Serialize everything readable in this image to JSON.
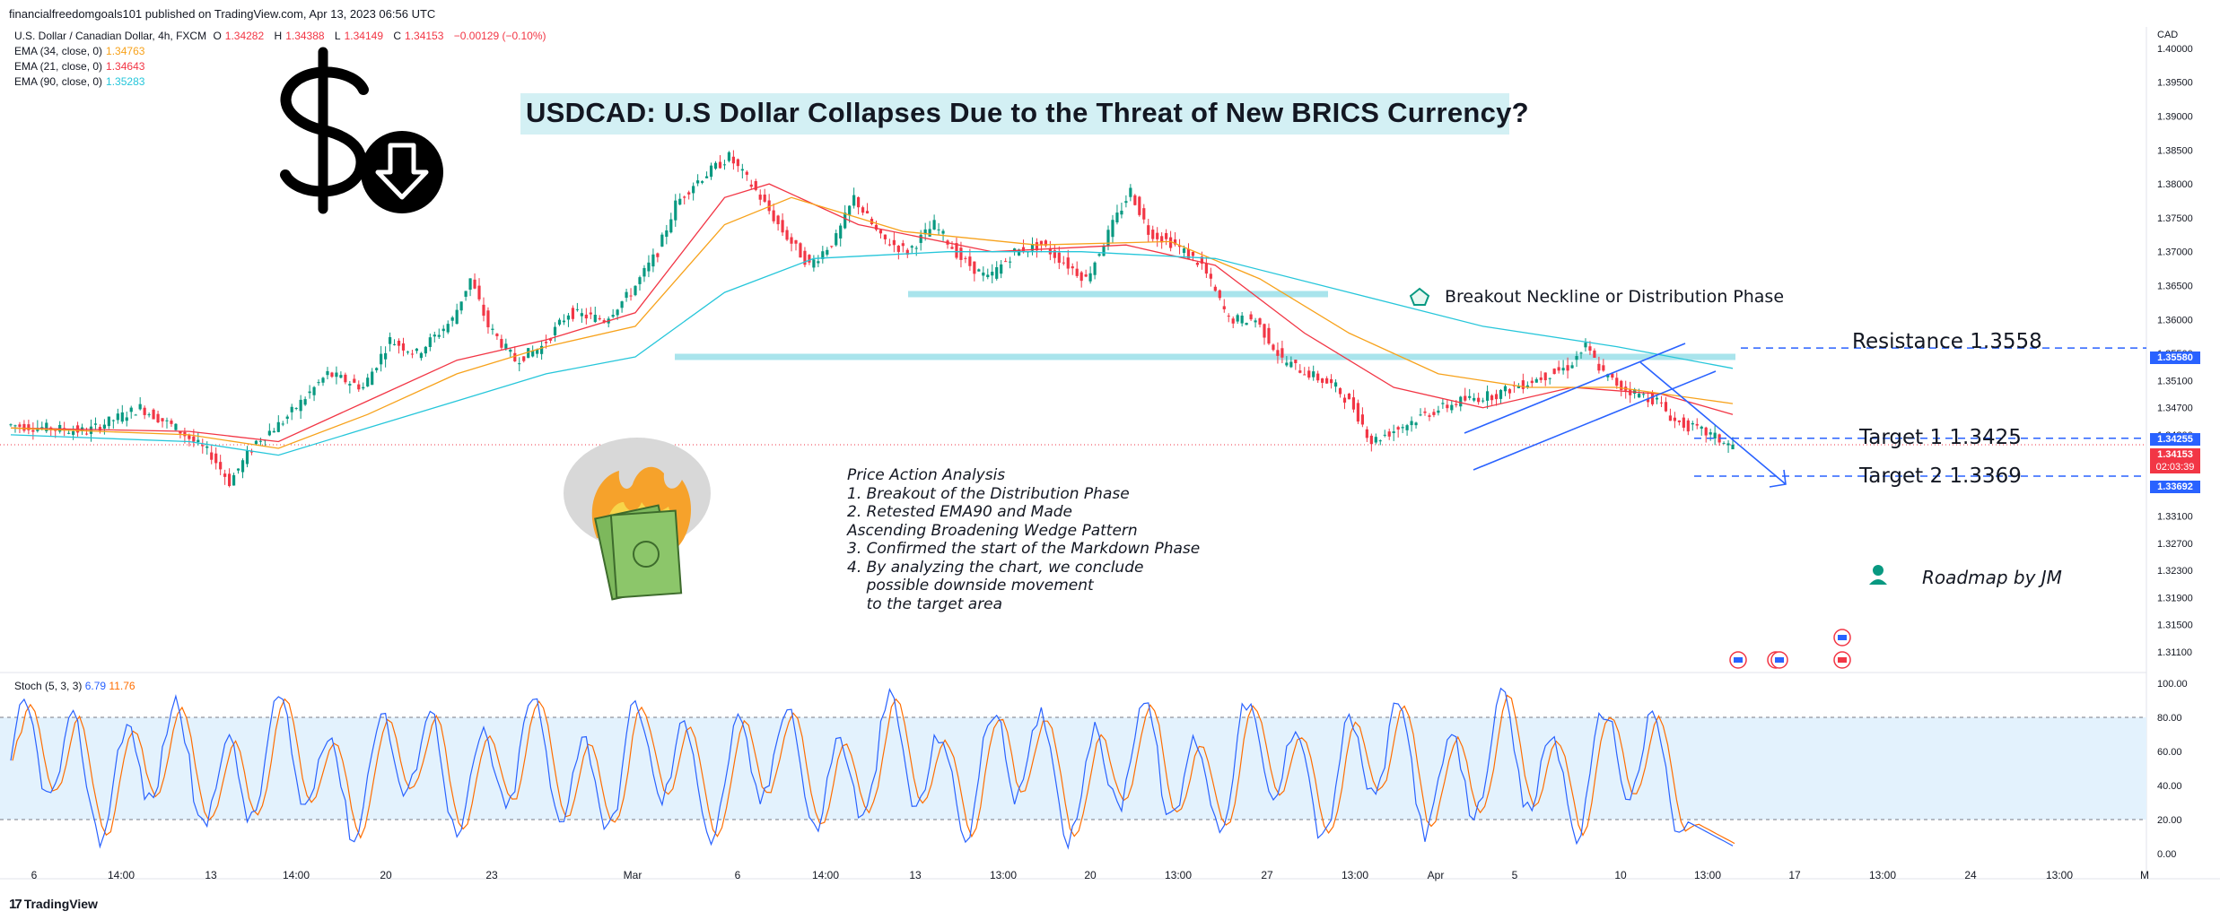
{
  "header": {
    "publisher": "financialfreedomgoals101 published on TradingView.com, Apr 13, 2023 06:56 UTC"
  },
  "legend": {
    "symbol": "U.S. Dollar / Canadian Dollar, 4h, FXCM",
    "ohlc": [
      {
        "k": "O",
        "v": "1.34282"
      },
      {
        "k": "H",
        "v": "1.34388"
      },
      {
        "k": "L",
        "v": "1.34149"
      },
      {
        "k": "C",
        "v": "1.34153"
      }
    ],
    "change": "−0.00129 (−0.10%)",
    "emas": [
      {
        "label": "EMA (34, close, 0)",
        "value": "1.34763",
        "color": "#f7a21b"
      },
      {
        "label": "EMA (21, close, 0)",
        "value": "1.34643",
        "color": "#f23645"
      },
      {
        "label": "EMA (90, close, 0)",
        "value": "1.35283",
        "color": "#26c6da"
      }
    ]
  },
  "title": "USDCAD: U.S Dollar Collapses Due to the Threat of New BRICS Currency?",
  "annotations": {
    "neckline": "Breakout Neckline or Distribution Phase",
    "resistance": "Resistance 1.3558",
    "target1": "Target 1  1.3425",
    "target2": "Target 2  1.3369",
    "roadmap": "Roadmap by JM",
    "analysis": [
      "Price Action Analysis",
      "1. Breakout of the Distribution Phase",
      "2. Retested EMA90 and Made",
      "Ascending Broadening Wedge Pattern",
      "3. Confirmed the start of the Markdown Phase",
      "4. By analyzing the chart, we conclude",
      "    possible downside movement",
      "    to the target area"
    ]
  },
  "price_axis": {
    "currency": "CAD",
    "tags": [
      {
        "value": "1.35580",
        "color": "#2962ff"
      },
      {
        "value": "1.34255",
        "color": "#2962ff"
      },
      {
        "value": "1.34153",
        "countdown": "02:03:39",
        "color": "#f23645"
      },
      {
        "value": "1.33692",
        "color": "#2962ff"
      }
    ]
  },
  "stoch": {
    "label": "Stoch (5, 3, 3)",
    "k": "6.79",
    "d": "11.76",
    "k_color": "#2962ff",
    "d_color": "#ff6d00"
  },
  "branding": "TradingView",
  "chart_data": {
    "type": "candlestick",
    "symbol": "USDCAD",
    "timeframe": "4h",
    "y_ticks": [
      "1.40000",
      "1.39500",
      "1.39000",
      "1.38500",
      "1.38000",
      "1.37500",
      "1.37000",
      "1.36500",
      "1.36000",
      "1.35500",
      "1.35100",
      "1.34700",
      "1.34300",
      "1.33900",
      "1.33500",
      "1.33100",
      "1.32700",
      "1.32300",
      "1.31900",
      "1.31500",
      "1.31100"
    ],
    "ylim": [
      1.309,
      1.4025
    ],
    "x_ticks": [
      "6",
      "14:00",
      "13",
      "14:00",
      "20",
      "23",
      "Mar",
      "6",
      "14:00",
      "13",
      "13:00",
      "20",
      "13:00",
      "27",
      "13:00",
      "Apr",
      "5",
      "10",
      "13:00",
      "17",
      "13:00",
      "24",
      "13:00",
      "M"
    ],
    "price_path": [
      [
        0,
        1.3445
      ],
      [
        18,
        1.3435
      ],
      [
        30,
        1.347
      ],
      [
        38,
        1.344
      ],
      [
        46,
        1.34
      ],
      [
        50,
        1.336
      ],
      [
        56,
        1.342
      ],
      [
        62,
        1.345
      ],
      [
        72,
        1.352
      ],
      [
        80,
        1.35
      ],
      [
        86,
        1.357
      ],
      [
        92,
        1.355
      ],
      [
        100,
        1.36
      ],
      [
        104,
        1.366
      ],
      [
        108,
        1.359
      ],
      [
        114,
        1.354
      ],
      [
        120,
        1.356
      ],
      [
        126,
        1.361
      ],
      [
        134,
        1.36
      ],
      [
        140,
        1.364
      ],
      [
        146,
        1.37
      ],
      [
        150,
        1.377
      ],
      [
        154,
        1.38
      ],
      [
        158,
        1.382
      ],
      [
        162,
        1.384
      ],
      [
        168,
        1.379
      ],
      [
        174,
        1.373
      ],
      [
        180,
        1.368
      ],
      [
        186,
        1.372
      ],
      [
        190,
        1.378
      ],
      [
        196,
        1.372
      ],
      [
        202,
        1.37
      ],
      [
        208,
        1.374
      ],
      [
        214,
        1.369
      ],
      [
        220,
        1.366
      ],
      [
        226,
        1.37
      ],
      [
        232,
        1.371
      ],
      [
        238,
        1.368
      ],
      [
        242,
        1.366
      ],
      [
        248,
        1.374
      ],
      [
        252,
        1.379
      ],
      [
        256,
        1.373
      ],
      [
        262,
        1.371
      ],
      [
        268,
        1.368
      ],
      [
        274,
        1.36
      ],
      [
        280,
        1.36
      ],
      [
        286,
        1.354
      ],
      [
        292,
        1.352
      ],
      [
        298,
        1.35
      ],
      [
        302,
        1.347
      ],
      [
        306,
        1.342
      ],
      [
        312,
        1.344
      ],
      [
        318,
        1.346
      ],
      [
        326,
        1.348
      ],
      [
        334,
        1.349
      ],
      [
        342,
        1.351
      ],
      [
        350,
        1.353
      ],
      [
        354,
        1.356
      ],
      [
        358,
        1.352
      ],
      [
        362,
        1.35
      ],
      [
        366,
        1.349
      ],
      [
        370,
        1.348
      ],
      [
        374,
        1.345
      ],
      [
        378,
        1.344
      ],
      [
        382,
        1.343
      ],
      [
        386,
        1.3415
      ]
    ],
    "ema_series": [
      {
        "name": "EMA (21, close, 0)",
        "color": "#f23645",
        "values": [
          [
            0,
            1.344
          ],
          [
            40,
            1.3435
          ],
          [
            60,
            1.342
          ],
          [
            80,
            1.348
          ],
          [
            100,
            1.354
          ],
          [
            120,
            1.357
          ],
          [
            140,
            1.361
          ],
          [
            160,
            1.378
          ],
          [
            170,
            1.38
          ],
          [
            190,
            1.374
          ],
          [
            220,
            1.37
          ],
          [
            250,
            1.371
          ],
          [
            270,
            1.368
          ],
          [
            290,
            1.358
          ],
          [
            310,
            1.35
          ],
          [
            330,
            1.347
          ],
          [
            350,
            1.35
          ],
          [
            370,
            1.349
          ],
          [
            386,
            1.346
          ]
        ]
      },
      {
        "name": "EMA (34, close, 0)",
        "color": "#f7a21b",
        "values": [
          [
            0,
            1.344
          ],
          [
            40,
            1.343
          ],
          [
            60,
            1.341
          ],
          [
            80,
            1.346
          ],
          [
            100,
            1.352
          ],
          [
            120,
            1.356
          ],
          [
            140,
            1.359
          ],
          [
            160,
            1.374
          ],
          [
            175,
            1.378
          ],
          [
            200,
            1.373
          ],
          [
            230,
            1.371
          ],
          [
            260,
            1.3715
          ],
          [
            280,
            1.366
          ],
          [
            300,
            1.358
          ],
          [
            320,
            1.352
          ],
          [
            340,
            1.35
          ],
          [
            360,
            1.35
          ],
          [
            386,
            1.3476
          ]
        ]
      },
      {
        "name": "EMA (90, close, 0)",
        "color": "#26c6da",
        "values": [
          [
            0,
            1.343
          ],
          [
            40,
            1.342
          ],
          [
            60,
            1.34
          ],
          [
            80,
            1.344
          ],
          [
            100,
            1.348
          ],
          [
            120,
            1.352
          ],
          [
            140,
            1.3545
          ],
          [
            160,
            1.364
          ],
          [
            180,
            1.369
          ],
          [
            210,
            1.37
          ],
          [
            240,
            1.37
          ],
          [
            270,
            1.369
          ],
          [
            300,
            1.364
          ],
          [
            330,
            1.359
          ],
          [
            360,
            1.356
          ],
          [
            386,
            1.3528
          ]
        ]
      }
    ],
    "levels": [
      {
        "name": "Resistance",
        "value": 1.3558
      },
      {
        "name": "Target 1",
        "value": 1.3425
      },
      {
        "name": "Target 2",
        "value": 1.3369
      }
    ],
    "stoch_ylim": [
      0,
      100
    ],
    "stoch_ticks": [
      "100.00",
      "80.00",
      "60.00",
      "40.00",
      "20.00",
      "0.00"
    ],
    "stoch_band": [
      20,
      80
    ]
  }
}
